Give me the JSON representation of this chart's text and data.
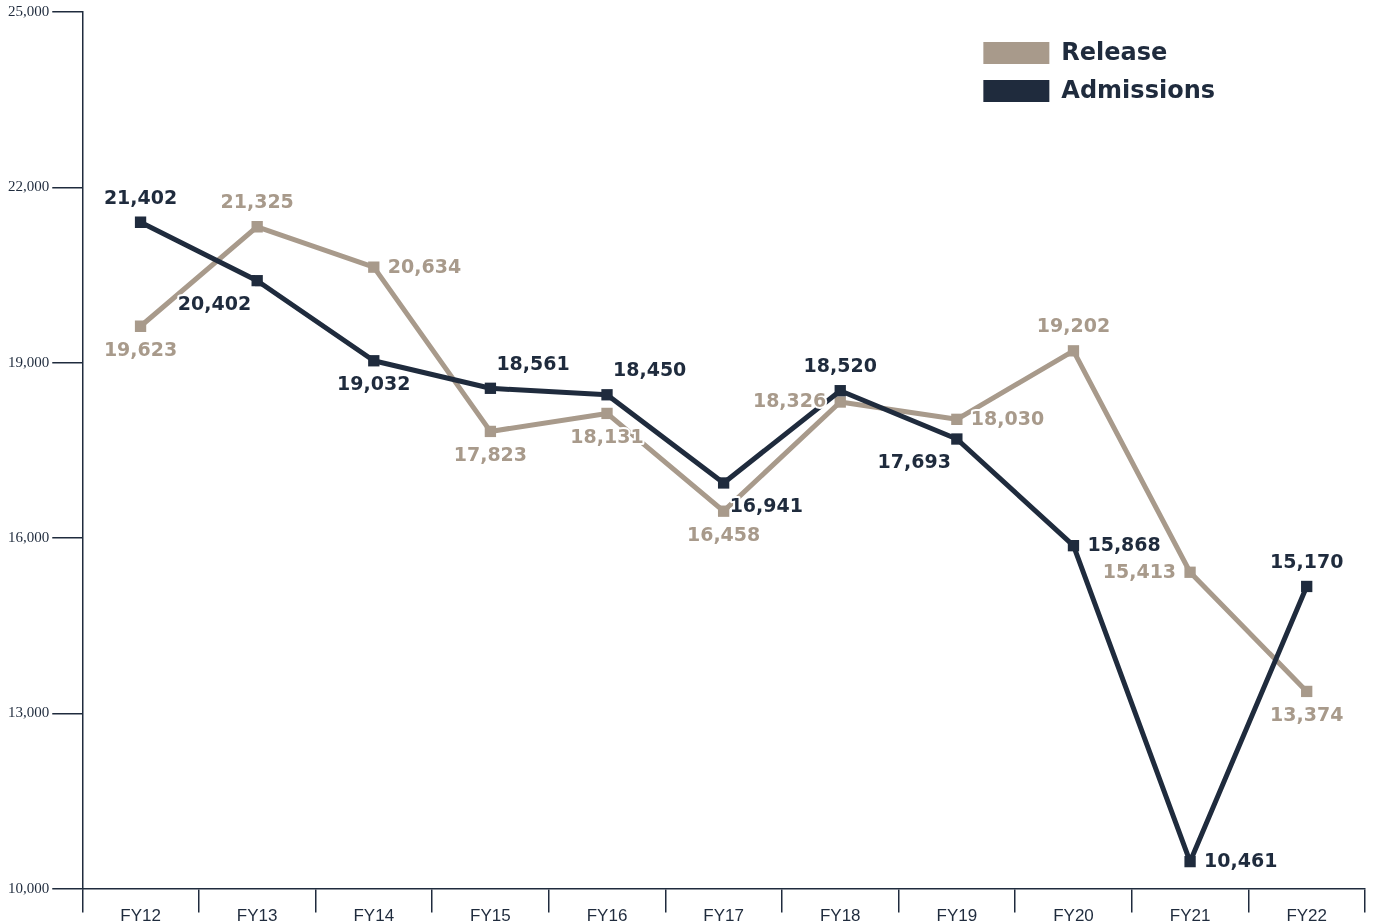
{
  "chart_data": {
    "type": "line",
    "categories": [
      "FY12",
      "FY13",
      "FY14",
      "FY15",
      "FY16",
      "FY17",
      "FY18",
      "FY19",
      "FY20",
      "FY21",
      "FY22"
    ],
    "series": [
      {
        "name": "Release",
        "color": "#a89a8b",
        "values": [
          19623,
          21325,
          20634,
          17823,
          18131,
          16458,
          18326,
          18030,
          19202,
          15413,
          13374
        ],
        "value_labels": [
          "19,623",
          "21,325",
          "20,634",
          "17,823",
          "18,131",
          "16,458",
          "18,326",
          "18,030",
          "19,202",
          "15,413",
          "13,374"
        ]
      },
      {
        "name": "Admissions",
        "color": "#1f2b3d",
        "values": [
          21402,
          20402,
          19032,
          18561,
          18450,
          16941,
          18520,
          17693,
          15868,
          10461,
          15170
        ],
        "value_labels": [
          "21,402",
          "20,402",
          "19,032",
          "18,561",
          "18,450",
          "16,941",
          "18,520",
          "17,693",
          "15,868",
          "10,461",
          "15,170"
        ]
      }
    ],
    "ylim": [
      10000,
      25000
    ],
    "yticks": [
      {
        "value": 10000,
        "label": "10,000"
      },
      {
        "value": 13000,
        "label": "13,000"
      },
      {
        "value": 16000,
        "label": "16,000"
      },
      {
        "value": 19000,
        "label": "19,000"
      },
      {
        "value": 22000,
        "label": "22,000"
      },
      {
        "value": 25000,
        "label": "25,000"
      }
    ],
    "grid": false,
    "legend": "top right",
    "marker": "square",
    "line_style": "solid"
  }
}
